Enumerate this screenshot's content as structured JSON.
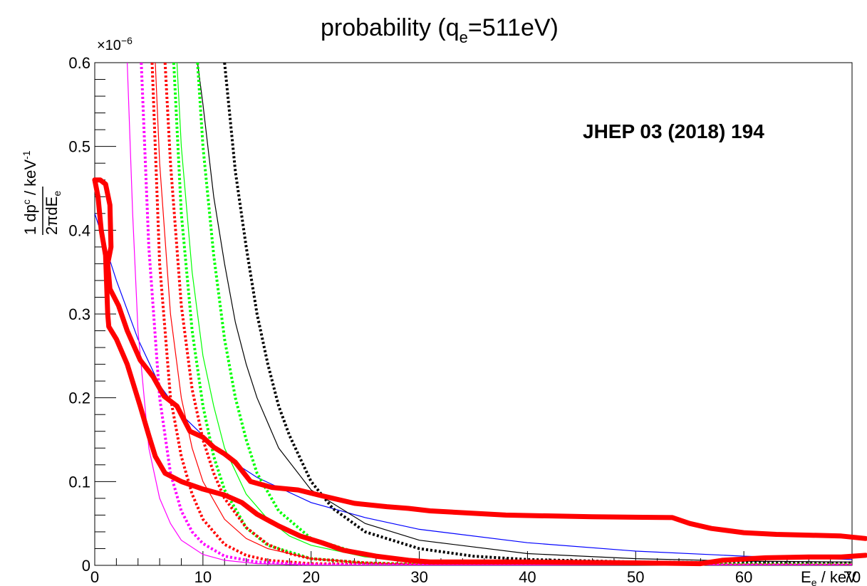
{
  "chart_data": {
    "type": "line",
    "title": "probability (q",
    "title_sub": "e",
    "title_end": "=511eV)",
    "ylabel": {
      "fraction_num": "1 dp",
      "fraction_num_sup": "c",
      "fraction_den": "2πdE",
      "fraction_den_sub": "e",
      "unit": " / keV",
      "unit_sup": "-1"
    },
    "xlabel": {
      "main": "E",
      "sub": "e",
      "unit": " / keV"
    },
    "exponent_label": "×10",
    "exponent_sup": "−6",
    "annotation": "JHEP 03 (2018) 194",
    "xlim": [
      0,
      70
    ],
    "ylim": [
      0,
      0.6
    ],
    "y_scale_note": "×10⁻⁶",
    "x_ticks": [
      0,
      10,
      20,
      30,
      40,
      50,
      60,
      70
    ],
    "x_tick_labels": [
      "0",
      "10",
      "20",
      "30",
      "40",
      "50",
      "60",
      "70"
    ],
    "y_ticks": [
      0,
      0.1,
      0.2,
      0.3,
      0.4,
      0.5,
      0.6
    ],
    "y_tick_labels": [
      "0",
      "0.1",
      "0.2",
      "0.3",
      "0.4",
      "0.5",
      "0.6"
    ],
    "grid": false,
    "colors": {
      "blue": "#0000ff",
      "black": "#000000",
      "green": "#00ff00",
      "red": "#ff0000",
      "magenta": "#ff00ff",
      "highlight": "#ff0000"
    },
    "series": [
      {
        "color": "#0000ff",
        "style": "solid",
        "x": [
          0,
          2,
          4,
          6,
          8,
          10,
          12,
          15,
          20,
          25,
          30,
          40,
          50,
          60,
          70
        ],
        "y": [
          0.42,
          0.34,
          0.27,
          0.215,
          0.18,
          0.155,
          0.13,
          0.105,
          0.075,
          0.057,
          0.043,
          0.027,
          0.017,
          0.011,
          0.007
        ]
      },
      {
        "color": "#000000",
        "style": "solid",
        "x": [
          9.5,
          10,
          11,
          12,
          13,
          14,
          15,
          17,
          20,
          25,
          30,
          40,
          50,
          60,
          70
        ],
        "y": [
          0.6,
          0.55,
          0.44,
          0.36,
          0.29,
          0.24,
          0.2,
          0.14,
          0.09,
          0.05,
          0.03,
          0.014,
          0.008,
          0.005,
          0.004
        ]
      },
      {
        "color": "#000000",
        "style": "dotted",
        "x": [
          12,
          13,
          14,
          15,
          16,
          17,
          18,
          20,
          22,
          25,
          30,
          35,
          40,
          50,
          60,
          70
        ],
        "y": [
          0.6,
          0.47,
          0.38,
          0.3,
          0.24,
          0.19,
          0.155,
          0.1,
          0.068,
          0.04,
          0.02,
          0.011,
          0.007,
          0.004,
          0.003,
          0.003
        ]
      },
      {
        "color": "#00ff00",
        "style": "solid",
        "x": [
          7.6,
          8,
          9,
          10,
          11,
          12,
          14,
          16,
          18,
          20,
          25,
          30,
          40,
          70
        ],
        "y": [
          0.6,
          0.5,
          0.35,
          0.25,
          0.19,
          0.14,
          0.085,
          0.055,
          0.035,
          0.024,
          0.01,
          0.005,
          0.002,
          0.001
        ]
      },
      {
        "color": "#00ff00",
        "style": "dotted",
        "x": [
          9.5,
          10,
          11,
          12,
          13,
          14,
          15,
          17,
          20,
          25,
          30,
          40,
          70
        ],
        "y": [
          0.6,
          0.5,
          0.37,
          0.27,
          0.2,
          0.15,
          0.11,
          0.065,
          0.032,
          0.012,
          0.005,
          0.002,
          0.001
        ]
      },
      {
        "color": "#00ff00",
        "style": "dotted",
        "x": [
          7.3,
          8,
          9,
          10,
          11,
          12,
          14,
          16,
          20,
          25,
          30,
          70
        ],
        "y": [
          0.6,
          0.42,
          0.28,
          0.19,
          0.13,
          0.09,
          0.045,
          0.024,
          0.008,
          0.003,
          0.001,
          0.0005
        ]
      },
      {
        "color": "#ff0000",
        "style": "solid",
        "x": [
          5.6,
          6,
          7,
          8,
          9,
          10,
          12,
          14,
          16,
          20,
          25,
          30,
          70
        ],
        "y": [
          0.6,
          0.48,
          0.3,
          0.2,
          0.14,
          0.1,
          0.055,
          0.032,
          0.02,
          0.008,
          0.003,
          0.001,
          0.0005
        ]
      },
      {
        "color": "#ff0000",
        "style": "dotted",
        "x": [
          6.5,
          7,
          8,
          9,
          10,
          11,
          12,
          14,
          16,
          18,
          20,
          25,
          30,
          70
        ],
        "y": [
          0.6,
          0.48,
          0.31,
          0.21,
          0.15,
          0.11,
          0.08,
          0.045,
          0.025,
          0.014,
          0.008,
          0.003,
          0.001,
          0.0005
        ]
      },
      {
        "color": "#ff0000",
        "style": "dotted",
        "x": [
          5.3,
          6,
          7,
          8,
          9,
          10,
          12,
          14,
          16,
          20,
          30,
          70
        ],
        "y": [
          0.6,
          0.36,
          0.2,
          0.13,
          0.085,
          0.055,
          0.025,
          0.012,
          0.006,
          0.002,
          0.0005,
          0.0003
        ]
      },
      {
        "color": "#ff00ff",
        "style": "solid",
        "x": [
          3.0,
          3.5,
          4,
          5,
          6,
          7,
          8,
          10,
          12,
          15,
          20,
          70
        ],
        "y": [
          0.6,
          0.42,
          0.28,
          0.14,
          0.08,
          0.05,
          0.03,
          0.013,
          0.006,
          0.002,
          0.0005,
          0.0002
        ]
      },
      {
        "color": "#ff00ff",
        "style": "dotted",
        "x": [
          4.3,
          5,
          6,
          7,
          8,
          9,
          10,
          12,
          15,
          20,
          30,
          70
        ],
        "y": [
          0.6,
          0.38,
          0.2,
          0.11,
          0.065,
          0.04,
          0.026,
          0.011,
          0.004,
          0.001,
          0.0003,
          0.0002
        ]
      }
    ],
    "highlight_loops": [
      {
        "color": "#ff0000",
        "x": [
          0,
          0.5,
          1,
          1.4,
          1.5,
          1.2,
          1.4,
          2.2,
          3.0,
          4.2,
          5.4,
          6.4,
          7.6,
          8.8,
          10.0,
          11.0,
          12.0,
          13.0,
          14.4,
          16.4,
          18.8,
          21.0,
          24.0,
          27.0,
          29.0,
          31.0,
          38.0,
          46.0,
          53.4,
          55.0,
          57.0,
          60.0,
          63.0,
          66.0,
          69.0,
          72.0
        ],
        "y": [
          0.46,
          0.46,
          0.455,
          0.43,
          0.38,
          0.36,
          0.33,
          0.31,
          0.28,
          0.245,
          0.225,
          0.202,
          0.19,
          0.16,
          0.153,
          0.141,
          0.133,
          0.123,
          0.1,
          0.093,
          0.09,
          0.083,
          0.074,
          0.07,
          0.068,
          0.065,
          0.06,
          0.058,
          0.057,
          0.05,
          0.044,
          0.039,
          0.037,
          0.036,
          0.035,
          0.032
        ]
      },
      {
        "color": "#ff0000",
        "x": [
          0,
          0.3,
          0.6,
          1.0,
          1.2,
          1.3,
          2.0,
          3.0,
          4.2,
          5.0,
          5.6,
          6.5,
          8.0,
          10.0,
          12.0,
          13.6,
          15.0,
          17.0,
          19.0,
          21.0,
          23.0,
          26.0,
          29.0,
          31.0,
          40.0,
          50.0,
          56.0,
          58.0,
          62.0,
          66.0,
          69.0,
          72.0
        ],
        "y": [
          0.46,
          0.44,
          0.4,
          0.37,
          0.3,
          0.285,
          0.27,
          0.24,
          0.19,
          0.155,
          0.13,
          0.11,
          0.1,
          0.091,
          0.084,
          0.075,
          0.061,
          0.047,
          0.035,
          0.027,
          0.018,
          0.011,
          0.006,
          0.004,
          0.004,
          0.003,
          0.002,
          0.006,
          0.009,
          0.01,
          0.01,
          0.012
        ]
      }
    ]
  }
}
